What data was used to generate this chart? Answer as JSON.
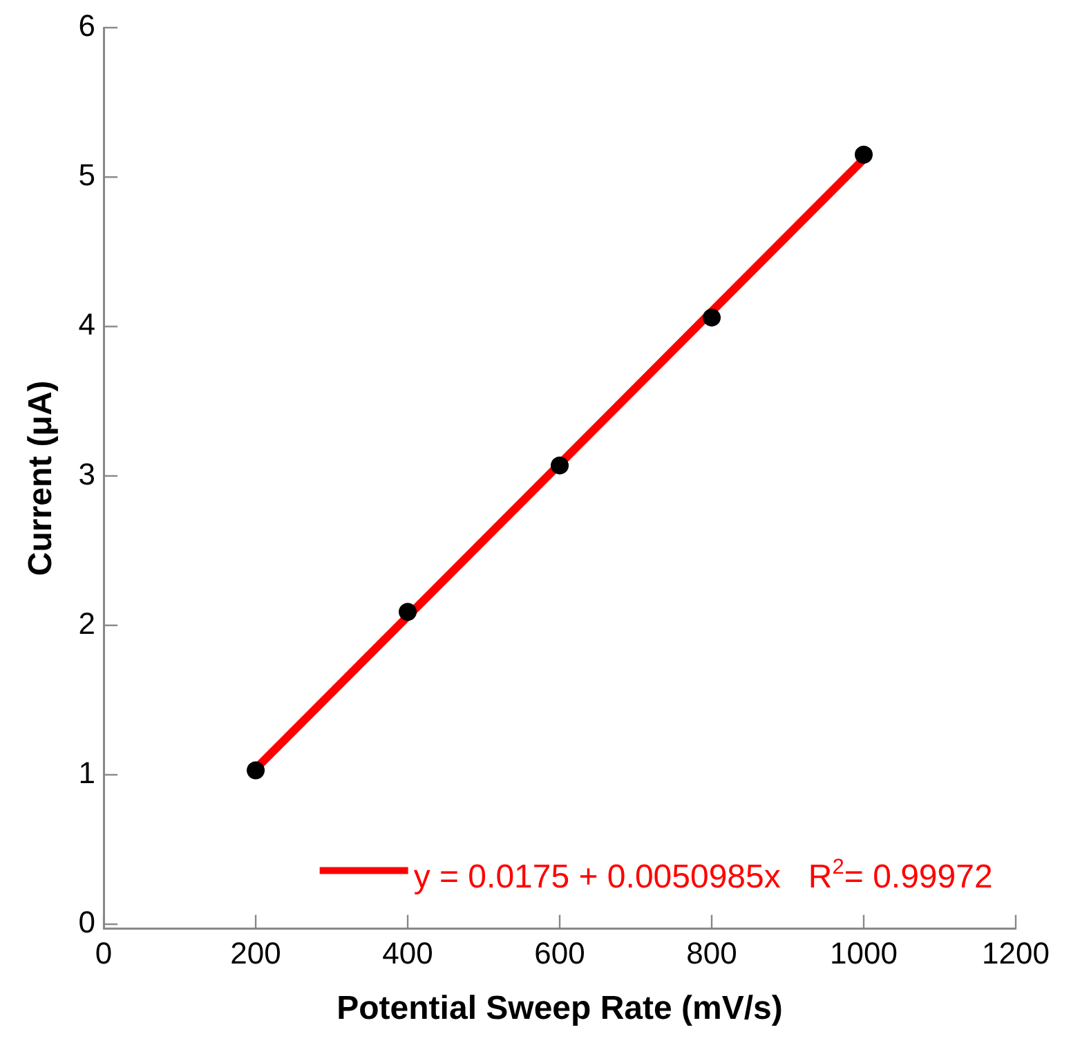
{
  "chart_data": {
    "type": "scatter",
    "xlabel": "Potential Sweep Rate (mV/s)",
    "ylabel": "Current (μA)",
    "x": [
      200,
      400,
      600,
      800,
      1000
    ],
    "series": [
      {
        "color": "#000000",
        "marker": "circle",
        "values": [
          1.03,
          2.09,
          3.07,
          4.06,
          5.15
        ]
      },
      {
        "type": "line",
        "name": "y = 0.0175 + 0.0050985x   R$^{2}$= 0.99972",
        "color": "#ff0000",
        "marker": "none",
        "x": [
          200,
          1000
        ],
        "values": [
          1.04,
          5.12
        ]
      }
    ],
    "xlim": [
      0,
      1200
    ],
    "xticks": [
      0,
      200,
      400,
      600,
      800,
      1000,
      1200
    ],
    "ylim": [
      -0.03,
      6
    ],
    "yticks": [
      0,
      1,
      2,
      3,
      4,
      5,
      6
    ],
    "grid": false,
    "legend": "bottom right",
    "line_style": "solid"
  }
}
